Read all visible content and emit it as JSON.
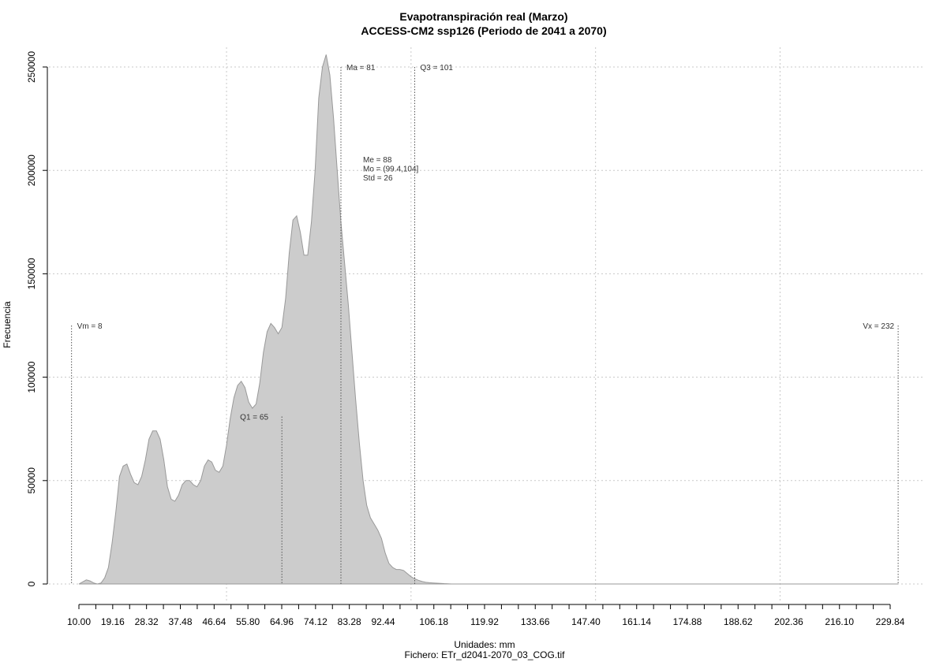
{
  "chart_data": {
    "type": "area",
    "title": "Evapotranspiración real (Marzo)",
    "subtitle": "ACCESS-CM2 ssp126 (Periodo de 2041 a 2070)",
    "xlabel": "Unidades: mm",
    "file_caption": "Fichero: ETr_d2041-2070_03_COG.tif",
    "ylabel": "Frecuencia",
    "xlim": [
      10,
      232
    ],
    "ylim": [
      0,
      260000
    ],
    "x_ticks": [
      10.0,
      19.16,
      28.32,
      37.48,
      46.64,
      55.8,
      64.96,
      74.12,
      83.28,
      92.44,
      106.18,
      119.92,
      133.66,
      147.4,
      161.14,
      174.88,
      188.62,
      202.36,
      216.1,
      229.84
    ],
    "x_tick_labels": [
      "10.00",
      "19.16",
      "28.32",
      "37.48",
      "46.64",
      "55.80",
      "64.96",
      "74.12",
      "83.28",
      "92.44",
      "106.18",
      "119.92",
      "133.66",
      "147.40",
      "161.14",
      "174.88",
      "188.62",
      "202.36",
      "216.10",
      "229.84"
    ],
    "x_minor_ticks": [
      14.58,
      23.74,
      32.9,
      42.06,
      51.22,
      60.38,
      69.54,
      78.7,
      87.86,
      97.02,
      101.6,
      110.76,
      115.34,
      124.5,
      129.08,
      138.24,
      142.82,
      151.98,
      156.56,
      165.72,
      170.3,
      179.46,
      184.04,
      193.2,
      197.78,
      206.94,
      211.52,
      220.68,
      225.26
    ],
    "y_ticks": [
      0,
      50000,
      100000,
      150000,
      200000,
      250000
    ],
    "y_tick_labels": [
      "0",
      "50000",
      "100000",
      "150000",
      "200000",
      "250000"
    ],
    "x_grid": [
      50,
      100,
      150,
      200
    ],
    "grid": true,
    "fill_color": "#cccccc",
    "line_color": "#999999",
    "x": [
      10,
      11,
      12,
      13,
      14,
      15,
      16,
      17,
      18,
      19,
      20,
      21,
      22,
      23,
      24,
      25,
      26,
      27,
      28,
      29,
      30,
      31,
      32,
      33,
      34,
      35,
      36,
      37,
      38,
      39,
      40,
      41,
      42,
      43,
      44,
      45,
      46,
      47,
      48,
      49,
      50,
      51,
      52,
      53,
      54,
      55,
      56,
      57,
      58,
      59,
      60,
      61,
      62,
      63,
      64,
      65,
      66,
      67,
      68,
      69,
      70,
      71,
      72,
      73,
      74,
      75,
      76,
      77,
      78,
      79,
      80,
      81,
      82,
      83,
      84,
      85,
      86,
      87,
      88,
      89,
      90,
      91,
      92,
      93,
      94,
      95,
      96,
      97,
      98,
      99,
      100,
      101,
      102,
      103,
      104,
      105,
      106,
      107,
      108,
      109,
      110,
      111,
      112,
      113,
      114,
      115,
      116,
      117,
      118,
      119,
      120,
      121,
      122,
      123,
      124,
      125,
      126,
      127,
      128,
      129,
      130,
      131,
      132,
      133,
      134,
      135,
      136,
      137,
      138,
      139,
      140,
      142,
      144,
      146,
      148,
      150,
      155,
      160,
      170,
      180,
      200,
      220,
      232
    ],
    "values": [
      0,
      1000,
      2000,
      1500,
      500,
      0,
      500,
      3000,
      8000,
      20000,
      35000,
      52000,
      57000,
      58000,
      53000,
      49000,
      48000,
      52000,
      60000,
      70000,
      74000,
      74000,
      70000,
      60000,
      47000,
      41000,
      40000,
      43000,
      48000,
      50000,
      50000,
      48000,
      47000,
      50000,
      57000,
      60000,
      59000,
      55000,
      54000,
      57000,
      67000,
      80000,
      90000,
      96000,
      98000,
      95000,
      88000,
      85000,
      87000,
      97000,
      112000,
      122000,
      126000,
      124000,
      121000,
      124000,
      138000,
      160000,
      176000,
      178000,
      170000,
      159000,
      159000,
      175000,
      200000,
      235000,
      250000,
      256000,
      246000,
      225000,
      200000,
      175000,
      155000,
      135000,
      112000,
      89000,
      68000,
      50000,
      38000,
      32000,
      29000,
      26000,
      22000,
      15000,
      10000,
      8000,
      7000,
      7000,
      6500,
      5000,
      3500,
      2500,
      1800,
      1200,
      800,
      600,
      500,
      400,
      300,
      200,
      100,
      0,
      0,
      0,
      0,
      0,
      0,
      0,
      0,
      0,
      0,
      0,
      0,
      0,
      0,
      0,
      0,
      0,
      0,
      0,
      0,
      0,
      0,
      0,
      0,
      0,
      0,
      0,
      0,
      0,
      0,
      0,
      0,
      0,
      0,
      0,
      0,
      0,
      0,
      0,
      0,
      0,
      0
    ],
    "reference_lines": [
      {
        "label": "Vm = 8",
        "x": 8,
        "label_y": 125000
      },
      {
        "label": "Q1 = 65",
        "x": 65,
        "label_y": 81000
      },
      {
        "label": "Ma = 81",
        "x": 81,
        "label_y": 250000
      },
      {
        "label": "Q3 = 101",
        "x": 101,
        "label_y": 250000
      },
      {
        "label": "Vx = 232",
        "x": 232,
        "label_y": 125000
      }
    ],
    "stats_annotation": [
      "Me = 88",
      "Mo = (99.4,104]",
      "Std = 26"
    ]
  }
}
